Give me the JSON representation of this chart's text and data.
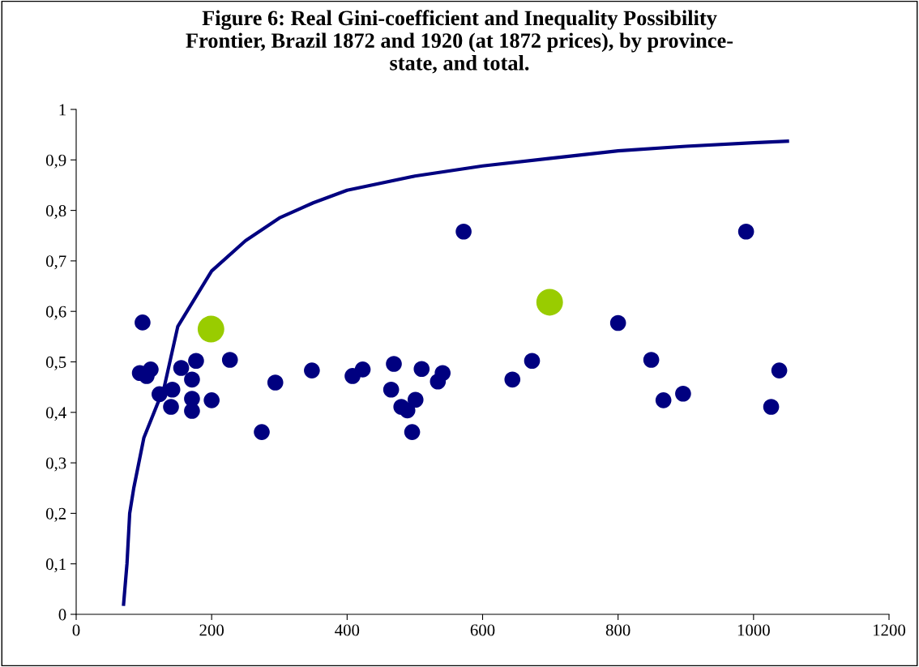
{
  "chart_data": {
    "type": "scatter",
    "title": "Figure 6: Real Gini-coefficient and Inequality Possibility\nFrontier, Brazil 1872 and 1920 (at 1872 prices), by province-\nstate, and total.",
    "xlim": [
      0,
      1200
    ],
    "xticks": [
      0,
      200,
      400,
      600,
      800,
      1000,
      1200
    ],
    "ylim": [
      0,
      1
    ],
    "yticks": [
      0,
      {
        "value": 0.1,
        "label": "0,1"
      },
      {
        "value": 0.2,
        "label": "0,2"
      },
      {
        "value": 0.3,
        "label": "0,3"
      },
      {
        "value": 0.4,
        "label": "0,4"
      },
      {
        "value": 0.5,
        "label": "0,5"
      },
      {
        "value": 0.6,
        "label": "0,6"
      },
      {
        "value": 0.7,
        "label": "0,7"
      },
      {
        "value": 0.8,
        "label": "0,8"
      },
      {
        "value": 0.9,
        "label": "0,9"
      },
      1
    ],
    "grid": false,
    "legend": false,
    "marker": "circle",
    "series": [
      {
        "type": "line",
        "color": "#000080",
        "marker": "none",
        "line_style": "solid",
        "x": [
          70,
          75,
          79,
          85,
          100,
          130,
          150,
          200,
          250,
          300,
          350,
          400,
          500,
          600,
          700,
          800,
          900,
          1000,
          1050
        ],
        "values": [
          0.02,
          0.1,
          0.2,
          0.25,
          0.35,
          0.45,
          0.57,
          0.68,
          0.74,
          0.785,
          0.815,
          0.84,
          0.868,
          0.888,
          0.903,
          0.918,
          0.927,
          0.934,
          0.937
        ]
      },
      {
        "color": "#000080",
        "x": [
          98,
          94,
          104,
          110,
          123,
          140,
          142,
          155,
          171,
          171,
          171,
          177,
          200,
          227,
          274,
          294,
          348,
          408,
          423,
          465,
          469,
          480,
          489,
          501,
          496,
          510,
          534,
          541,
          572,
          644,
          673,
          800,
          849,
          867,
          896,
          989,
          1038,
          1026
        ],
        "values": [
          0.578,
          0.478,
          0.472,
          0.485,
          0.436,
          0.411,
          0.445,
          0.488,
          0.465,
          0.427,
          0.403,
          0.502,
          0.424,
          0.504,
          0.361,
          0.459,
          0.483,
          0.472,
          0.485,
          0.445,
          0.496,
          0.411,
          0.404,
          0.425,
          0.361,
          0.486,
          0.461,
          0.478,
          0.758,
          0.465,
          0.502,
          0.577,
          0.504,
          0.424,
          0.437,
          0.758,
          0.483,
          0.411
        ]
      },
      {
        "color": "#99cc00",
        "x": [
          199,
          699
        ],
        "values": [
          0.565,
          0.618
        ]
      }
    ]
  }
}
